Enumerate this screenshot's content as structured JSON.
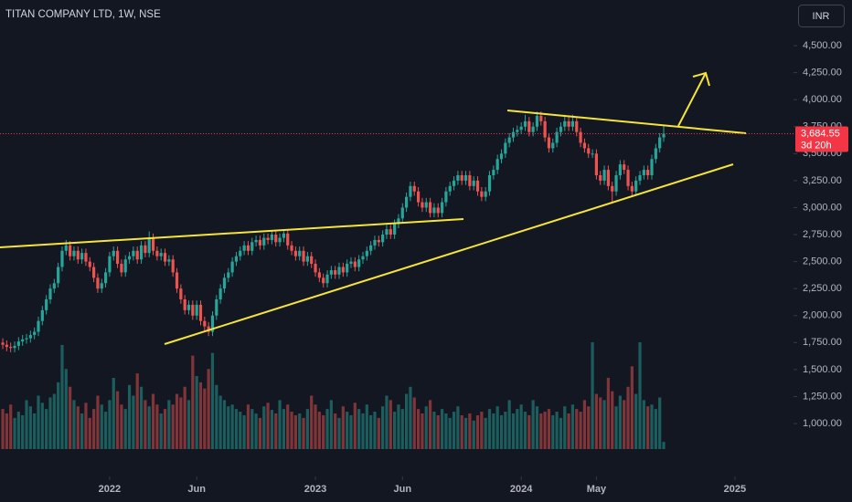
{
  "chart_data": {
    "type": "candlestick",
    "title": "TITAN COMPANY LTD, 1W, NSE",
    "currency": "INR",
    "up_color": "#26a69a",
    "down_color": "#ef5350",
    "xlim": [
      -0.7,
      199.8
    ],
    "xticks": [
      {
        "value": 27,
        "label": "2022"
      },
      {
        "value": 49,
        "label": "Jun"
      },
      {
        "value": 79,
        "label": "2023"
      },
      {
        "value": 101,
        "label": "Jun"
      },
      {
        "value": 131,
        "label": "2024"
      },
      {
        "value": 150,
        "label": "May"
      },
      {
        "value": 185,
        "label": "2025"
      }
    ],
    "ylim": [
      510,
      4923
    ],
    "yticks": [
      {
        "value": 1000,
        "label": "1,000.00"
      },
      {
        "value": 1250,
        "label": "1,250.00"
      },
      {
        "value": 1500,
        "label": "1,500.00"
      },
      {
        "value": 1750,
        "label": "1,750.00"
      },
      {
        "value": 2000,
        "label": "2,000.00"
      },
      {
        "value": 2250,
        "label": "2,250.00"
      },
      {
        "value": 2500,
        "label": "2,500.00"
      },
      {
        "value": 2750,
        "label": "2,750.00"
      },
      {
        "value": 3000,
        "label": "3,000.00"
      },
      {
        "value": 3250,
        "label": "3,250.00"
      },
      {
        "value": 3500,
        "label": "3,500.00"
      },
      {
        "value": 3750,
        "label": "3,750.00"
      },
      {
        "value": 4000,
        "label": "4,000.00"
      },
      {
        "value": 4250,
        "label": "4,250.00"
      },
      {
        "value": 4500,
        "label": "4,500.00"
      }
    ],
    "last_price": {
      "value": 3684.55,
      "label": "3,684.55"
    },
    "countdown": "3d 20h",
    "x": [
      0,
      1,
      2,
      3,
      4,
      5,
      6,
      7,
      8,
      9,
      10,
      11,
      12,
      13,
      14,
      15,
      16,
      17,
      18,
      19,
      20,
      21,
      22,
      23,
      24,
      25,
      26,
      27,
      28,
      29,
      30,
      31,
      32,
      33,
      34,
      35,
      36,
      37,
      38,
      39,
      40,
      41,
      42,
      43,
      44,
      45,
      46,
      47,
      48,
      49,
      50,
      51,
      52,
      53,
      54,
      55,
      56,
      57,
      58,
      59,
      60,
      61,
      62,
      63,
      64,
      65,
      66,
      67,
      68,
      69,
      70,
      71,
      72,
      73,
      74,
      75,
      76,
      77,
      78,
      79,
      80,
      81,
      82,
      83,
      84,
      85,
      86,
      87,
      88,
      89,
      90,
      91,
      92,
      93,
      94,
      95,
      96,
      97,
      98,
      99,
      100,
      101,
      102,
      103,
      104,
      105,
      106,
      107,
      108,
      109,
      110,
      111,
      112,
      113,
      114,
      115,
      116,
      117,
      118,
      119,
      120,
      121,
      122,
      123,
      124,
      125,
      126,
      127,
      128,
      129,
      130,
      131,
      132,
      133,
      134,
      135,
      136,
      137,
      138,
      139,
      140,
      141,
      142,
      143,
      144,
      145,
      146,
      147,
      148,
      149,
      150,
      151,
      152,
      153,
      154,
      155,
      156,
      157,
      158,
      159,
      160,
      161,
      162,
      163,
      164,
      165,
      166,
      167
    ],
    "open": [
      1750,
      1730,
      1710,
      1700,
      1720,
      1760,
      1780,
      1790,
      1820,
      1850,
      1950,
      2050,
      2150,
      2250,
      2300,
      2450,
      2600,
      2650,
      2550,
      2600,
      2520,
      2580,
      2500,
      2450,
      2350,
      2250,
      2300,
      2400,
      2550,
      2600,
      2480,
      2400,
      2520,
      2550,
      2600,
      2520,
      2650,
      2580,
      2720,
      2600,
      2550,
      2580,
      2500,
      2520,
      2400,
      2250,
      2150,
      2050,
      2100,
      2000,
      2100,
      1950,
      1900,
      1850,
      2000,
      2150,
      2250,
      2350,
      2400,
      2500,
      2550,
      2600,
      2650,
      2600,
      2680,
      2700,
      2650,
      2720,
      2700,
      2750,
      2680,
      2720,
      2760,
      2650,
      2600,
      2550,
      2600,
      2500,
      2550,
      2480,
      2400,
      2350,
      2300,
      2380,
      2420,
      2380,
      2450,
      2400,
      2480,
      2500,
      2450,
      2520,
      2550,
      2600,
      2650,
      2700,
      2680,
      2750,
      2800,
      2750,
      2850,
      2900,
      3000,
      3100,
      3200,
      3150,
      3050,
      3000,
      3050,
      2950,
      3000,
      2950,
      3050,
      3150,
      3200,
      3250,
      3300,
      3250,
      3300,
      3200,
      3250,
      3150,
      3100,
      3150,
      3300,
      3350,
      3450,
      3500,
      3600,
      3650,
      3700,
      3720,
      3750,
      3800,
      3700,
      3750,
      3850,
      3800,
      3650,
      3550,
      3600,
      3700,
      3750,
      3800,
      3750,
      3800,
      3700,
      3600,
      3550,
      3500,
      3500,
      3300,
      3250,
      3350,
      3200,
      3150,
      3300,
      3400,
      3350,
      3200,
      3150,
      3250,
      3300,
      3350,
      3300,
      3450,
      3550,
      3650
    ],
    "high": [
      1790,
      1770,
      1750,
      1760,
      1800,
      1820,
      1830,
      1860,
      1890,
      1990,
      2090,
      2190,
      2290,
      2340,
      2490,
      2640,
      2700,
      2690,
      2640,
      2640,
      2620,
      2620,
      2540,
      2490,
      2390,
      2340,
      2440,
      2590,
      2640,
      2640,
      2520,
      2560,
      2590,
      2640,
      2640,
      2690,
      2690,
      2780,
      2760,
      2640,
      2620,
      2620,
      2560,
      2560,
      2440,
      2290,
      2190,
      2140,
      2140,
      2140,
      2140,
      1990,
      1940,
      2040,
      2190,
      2290,
      2390,
      2440,
      2540,
      2590,
      2640,
      2690,
      2690,
      2720,
      2740,
      2740,
      2760,
      2760,
      2790,
      2790,
      2760,
      2800,
      2800,
      2690,
      2640,
      2640,
      2640,
      2590,
      2590,
      2520,
      2440,
      2390,
      2420,
      2460,
      2460,
      2490,
      2490,
      2520,
      2540,
      2540,
      2560,
      2590,
      2640,
      2690,
      2740,
      2740,
      2790,
      2840,
      2840,
      2890,
      2940,
      3040,
      3140,
      3240,
      3240,
      3190,
      3090,
      3090,
      3090,
      3040,
      3040,
      3090,
      3190,
      3240,
      3290,
      3340,
      3340,
      3340,
      3340,
      3290,
      3290,
      3190,
      3190,
      3340,
      3390,
      3490,
      3540,
      3640,
      3690,
      3740,
      3760,
      3790,
      3860,
      3840,
      3790,
      3890,
      3890,
      3840,
      3690,
      3640,
      3740,
      3790,
      3860,
      3840,
      3860,
      3840,
      3740,
      3640,
      3590,
      3540,
      3540,
      3340,
      3390,
      3390,
      3240,
      3340,
      3440,
      3440,
      3390,
      3240,
      3290,
      3340,
      3390,
      3390,
      3490,
      3590,
      3690,
      3760
    ],
    "low": [
      1690,
      1670,
      1660,
      1660,
      1680,
      1720,
      1740,
      1750,
      1780,
      1810,
      1910,
      2010,
      2110,
      2210,
      2260,
      2410,
      2560,
      2510,
      2510,
      2480,
      2480,
      2460,
      2410,
      2310,
      2210,
      2210,
      2260,
      2360,
      2510,
      2440,
      2360,
      2360,
      2480,
      2510,
      2480,
      2480,
      2540,
      2540,
      2560,
      2510,
      2510,
      2460,
      2460,
      2360,
      2210,
      2110,
      2010,
      2010,
      1960,
      1960,
      1910,
      1860,
      1810,
      1810,
      1960,
      2110,
      2210,
      2310,
      2360,
      2460,
      2510,
      2560,
      2560,
      2560,
      2640,
      2610,
      2610,
      2660,
      2660,
      2640,
      2640,
      2680,
      2610,
      2560,
      2510,
      2510,
      2460,
      2460,
      2440,
      2360,
      2310,
      2260,
      2260,
      2340,
      2340,
      2340,
      2360,
      2360,
      2440,
      2410,
      2410,
      2480,
      2510,
      2560,
      2610,
      2640,
      2640,
      2710,
      2710,
      2710,
      2810,
      2860,
      2960,
      3060,
      3110,
      3010,
      2960,
      2960,
      2910,
      2910,
      2910,
      2910,
      3010,
      3110,
      3160,
      3210,
      3210,
      3210,
      3160,
      3160,
      3110,
      3060,
      3060,
      3110,
      3260,
      3310,
      3410,
      3460,
      3560,
      3610,
      3660,
      3680,
      3710,
      3660,
      3660,
      3710,
      3760,
      3610,
      3510,
      3510,
      3560,
      3660,
      3710,
      3710,
      3710,
      3660,
      3560,
      3510,
      3460,
      3460,
      3260,
      3210,
      3210,
      3160,
      3050,
      3110,
      3260,
      3310,
      3160,
      3100,
      3110,
      3210,
      3260,
      3260,
      3260,
      3410,
      3510,
      3610
    ],
    "close": [
      1730,
      1710,
      1700,
      1720,
      1760,
      1780,
      1790,
      1820,
      1850,
      1950,
      2050,
      2150,
      2250,
      2300,
      2450,
      2600,
      2650,
      2550,
      2600,
      2520,
      2580,
      2500,
      2450,
      2350,
      2250,
      2300,
      2400,
      2550,
      2600,
      2480,
      2400,
      2520,
      2550,
      2600,
      2520,
      2650,
      2580,
      2720,
      2600,
      2550,
      2580,
      2500,
      2520,
      2400,
      2250,
      2150,
      2050,
      2100,
      2000,
      2100,
      1950,
      1900,
      1850,
      2000,
      2150,
      2250,
      2350,
      2400,
      2500,
      2550,
      2600,
      2650,
      2600,
      2680,
      2700,
      2650,
      2720,
      2700,
      2750,
      2680,
      2720,
      2760,
      2650,
      2600,
      2550,
      2600,
      2500,
      2550,
      2480,
      2400,
      2350,
      2300,
      2380,
      2420,
      2380,
      2450,
      2400,
      2480,
      2500,
      2450,
      2520,
      2550,
      2600,
      2650,
      2700,
      2680,
      2750,
      2800,
      2750,
      2850,
      2900,
      3000,
      3100,
      3200,
      3150,
      3050,
      3000,
      3050,
      2950,
      3000,
      2950,
      3050,
      3150,
      3200,
      3250,
      3300,
      3250,
      3300,
      3200,
      3250,
      3150,
      3100,
      3150,
      3300,
      3350,
      3450,
      3500,
      3600,
      3650,
      3700,
      3720,
      3750,
      3800,
      3700,
      3750,
      3850,
      3800,
      3650,
      3550,
      3600,
      3700,
      3750,
      3800,
      3750,
      3800,
      3700,
      3600,
      3550,
      3500,
      3500,
      3300,
      3250,
      3350,
      3200,
      3150,
      3300,
      3400,
      3350,
      3200,
      3150,
      3250,
      3300,
      3350,
      3300,
      3450,
      3550,
      3650,
      3684.55
    ],
    "volume": [
      45,
      40,
      50,
      35,
      42,
      38,
      55,
      48,
      40,
      60,
      52,
      45,
      58,
      62,
      75,
      117,
      90,
      70,
      55,
      48,
      40,
      52,
      35,
      45,
      60,
      50,
      42,
      55,
      80,
      65,
      50,
      45,
      72,
      60,
      85,
      70,
      55,
      48,
      62,
      50,
      40,
      45,
      55,
      50,
      62,
      58,
      70,
      55,
      105,
      82,
      75,
      68,
      90,
      108,
      72,
      60,
      55,
      48,
      50,
      45,
      42,
      38,
      50,
      45,
      40,
      35,
      48,
      52,
      44,
      40,
      55,
      45,
      50,
      42,
      38,
      40,
      35,
      45,
      60,
      50,
      42,
      38,
      45,
      55,
      40,
      35,
      48,
      42,
      38,
      52,
      45,
      40,
      50,
      38,
      42,
      35,
      48,
      60,
      55,
      42,
      50,
      45,
      62,
      70,
      58,
      45,
      40,
      48,
      55,
      42,
      38,
      45,
      40,
      35,
      42,
      48,
      38,
      35,
      40,
      32,
      38,
      42,
      35,
      45,
      40,
      48,
      38,
      42,
      55,
      40,
      45,
      50,
      42,
      38,
      55,
      48,
      40,
      42,
      45,
      38,
      42,
      35,
      48,
      40,
      50,
      45,
      42,
      55,
      48,
      120,
      62,
      58,
      55,
      80,
      65,
      48,
      60,
      55,
      70,
      93,
      62,
      120,
      55,
      48,
      50,
      45,
      58,
      8
    ]
  }
}
